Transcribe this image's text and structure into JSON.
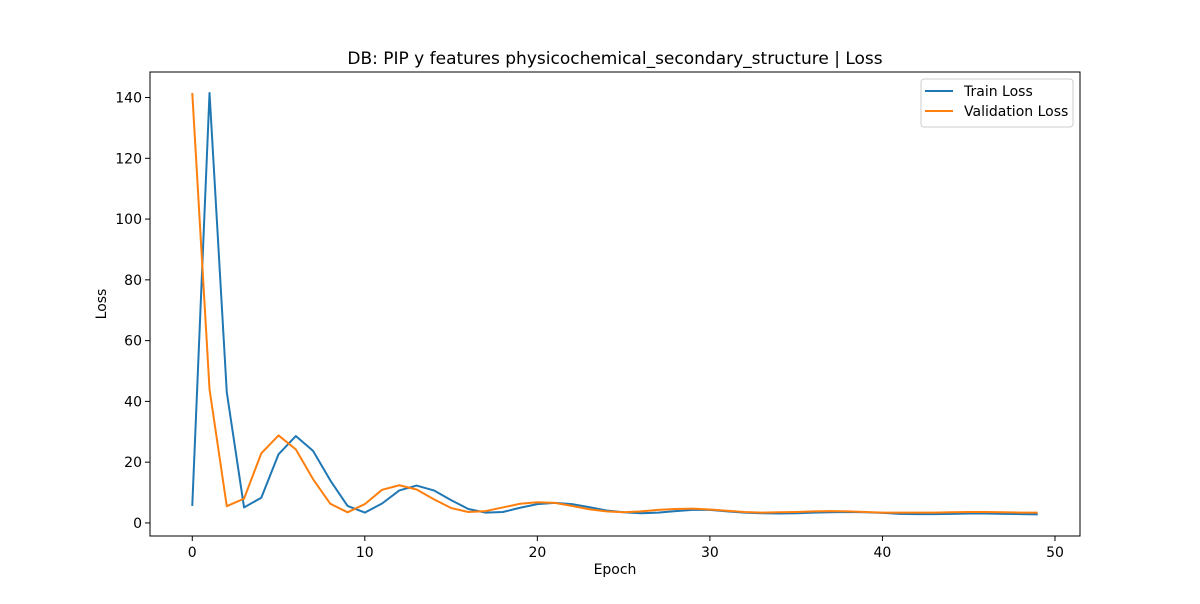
{
  "chart_data": {
    "type": "line",
    "title": "DB: PIP y features physicochemical_secondary_structure | Loss",
    "xlabel": "Epoch",
    "ylabel": "Loss",
    "xlim": [
      -2.45,
      51.45
    ],
    "ylim": [
      -4.3,
      148.4
    ],
    "xticks": [
      0,
      10,
      20,
      30,
      40,
      50
    ],
    "yticks": [
      0,
      20,
      40,
      60,
      80,
      100,
      120,
      140
    ],
    "grid": false,
    "legend_position": "top-right",
    "x": [
      0,
      1,
      2,
      3,
      4,
      5,
      6,
      7,
      8,
      9,
      10,
      11,
      12,
      13,
      14,
      15,
      16,
      17,
      18,
      19,
      20,
      21,
      22,
      23,
      24,
      25,
      26,
      27,
      28,
      29,
      30,
      31,
      32,
      33,
      34,
      35,
      36,
      37,
      38,
      39,
      40,
      41,
      42,
      43,
      44,
      45,
      46,
      47,
      48,
      49
    ],
    "series": [
      {
        "name": "Train Loss",
        "color": "#1f77b4",
        "values": [
          5.6,
          141.5,
          43.0,
          5.1,
          8.3,
          22.6,
          28.6,
          23.7,
          14.0,
          5.6,
          3.4,
          6.4,
          10.7,
          12.3,
          10.7,
          7.5,
          4.6,
          3.4,
          3.6,
          5.0,
          6.2,
          6.6,
          6.2,
          5.2,
          4.1,
          3.5,
          3.2,
          3.4,
          3.9,
          4.3,
          4.3,
          3.8,
          3.4,
          3.2,
          3.1,
          3.2,
          3.4,
          3.5,
          3.6,
          3.5,
          3.3,
          3.0,
          2.9,
          2.9,
          3.0,
          3.1,
          3.1,
          3.0,
          2.9,
          2.8
        ]
      },
      {
        "name": "Validation Loss",
        "color": "#ff7f0e",
        "values": [
          141.5,
          44.0,
          5.5,
          8.0,
          22.9,
          28.8,
          24.2,
          14.4,
          6.3,
          3.5,
          6.2,
          10.9,
          12.4,
          11.0,
          7.8,
          4.9,
          3.6,
          3.9,
          5.1,
          6.3,
          6.8,
          6.6,
          5.6,
          4.5,
          3.8,
          3.5,
          3.8,
          4.3,
          4.6,
          4.7,
          4.4,
          4.0,
          3.6,
          3.4,
          3.5,
          3.6,
          3.8,
          3.9,
          3.8,
          3.6,
          3.4,
          3.4,
          3.4,
          3.4,
          3.5,
          3.6,
          3.6,
          3.5,
          3.4,
          3.4
        ]
      }
    ]
  }
}
